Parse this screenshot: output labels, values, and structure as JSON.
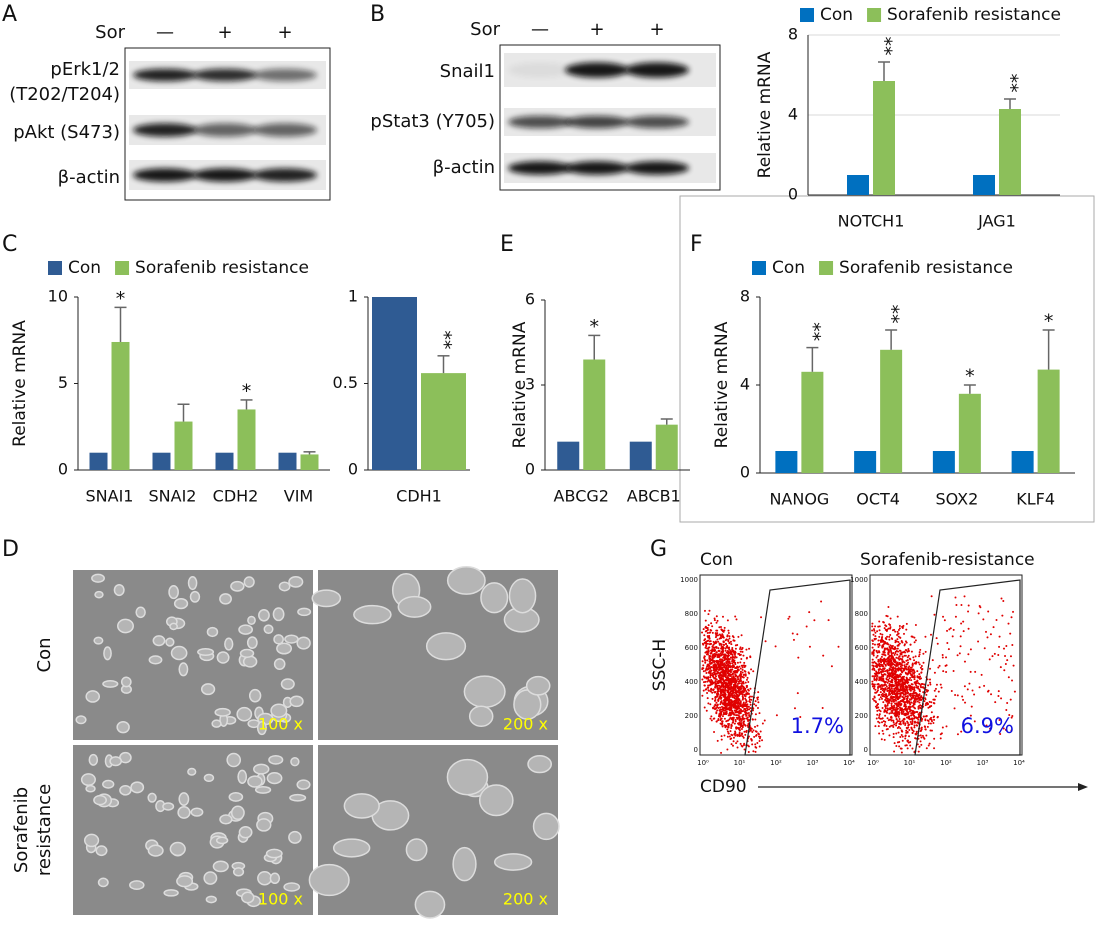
{
  "panels": [
    "A",
    "B",
    "C",
    "D",
    "E",
    "F",
    "G"
  ],
  "blot_a": {
    "treatment": "Sor",
    "lanes": [
      "—",
      "+",
      "+"
    ],
    "rows": [
      "pErk1/2",
      "(T202/T204)",
      "pAkt (S473)",
      "β-actin"
    ]
  },
  "blot_b": {
    "treatment": "Sor",
    "lanes": [
      "—",
      "+",
      "+"
    ],
    "rows": [
      "Snail1",
      "pStat3 (Y705)",
      "β-actin"
    ]
  },
  "micrographs": {
    "rows": [
      "Con",
      "Sorafenib",
      "resistance"
    ],
    "magnifications": [
      "100 x",
      "200 x",
      "100 x",
      "200 x"
    ]
  },
  "flow": {
    "groups": [
      "Con",
      "Sorafenib-resistance"
    ],
    "percentages": [
      "1.7%",
      "6.9%"
    ],
    "ylabel": "SSC-H",
    "xlabel": "CD90",
    "yticks": [
      1000,
      800,
      600,
      400,
      200,
      0
    ],
    "xticks": [
      "10⁰",
      "10¹",
      "10²",
      "10³",
      "10⁴"
    ]
  },
  "chart_data": [
    {
      "type": "bar",
      "ylabel": "Relative mRNA",
      "categories": [
        "NOTCH1",
        "JAG1"
      ],
      "grid": true,
      "series": [
        {
          "name": "Con",
          "color": "#0070c0",
          "values": [
            1,
            1
          ]
        },
        {
          "name": "Sorafenib resistance",
          "color": "#8cbf5a",
          "values": [
            5.7,
            4.3
          ],
          "errors": [
            0.95,
            0.5
          ],
          "annotations": [
            "**",
            "**"
          ]
        }
      ],
      "ylim": [
        0,
        8
      ],
      "yticks": [
        0,
        4,
        8
      ]
    },
    {
      "type": "bar",
      "ylabel": "Relative mRNA",
      "categories": [
        "SNAI1",
        "SNAI2",
        "CDH2",
        "VIM"
      ],
      "grid": false,
      "series": [
        {
          "name": "Con",
          "color": "#2f5b93",
          "values": [
            1,
            1,
            1,
            1
          ]
        },
        {
          "name": "Sorafenib resistance",
          "color": "#8cbf5a",
          "values": [
            7.4,
            2.8,
            3.5,
            0.9
          ],
          "errors": [
            2.0,
            1.0,
            0.55,
            0.15
          ],
          "annotations": [
            "*",
            null,
            "*",
            null
          ]
        }
      ],
      "ylim": [
        0,
        10
      ],
      "yticks": [
        0,
        5,
        10
      ]
    },
    {
      "type": "bar",
      "categories": [
        "CDH1"
      ],
      "grid": false,
      "series": [
        {
          "color": "#2f5b93",
          "values": [
            1
          ]
        },
        {
          "color": "#8cbf5a",
          "values": [
            0.56
          ],
          "errors": [
            0.1
          ],
          "annotations": [
            "**"
          ]
        }
      ],
      "ylim": [
        0,
        1
      ],
      "yticks": [
        0,
        0.5,
        1
      ]
    },
    {
      "type": "bar",
      "ylabel": "Relative mRNA",
      "categories": [
        "ABCG2",
        "ABCB1"
      ],
      "grid": false,
      "series": [
        {
          "color": "#2f5b93",
          "values": [
            1,
            1
          ]
        },
        {
          "color": "#8cbf5a",
          "values": [
            3.9,
            1.6
          ],
          "errors": [
            0.85,
            0.2
          ],
          "annotations": [
            "*",
            null
          ]
        }
      ],
      "ylim": [
        0,
        6
      ],
      "yticks": [
        0,
        3,
        6
      ]
    },
    {
      "type": "bar",
      "ylabel": "Relative mRNA",
      "categories": [
        "NANOG",
        "OCT4",
        "SOX2",
        "KLF4"
      ],
      "grid": false,
      "series": [
        {
          "name": "Con",
          "color": "#0070c0",
          "values": [
            1,
            1,
            1,
            1
          ]
        },
        {
          "name": "Sorafenib resistance",
          "color": "#8cbf5a",
          "values": [
            4.6,
            5.6,
            3.6,
            4.7
          ],
          "errors": [
            1.1,
            0.9,
            0.4,
            1.8
          ],
          "annotations": [
            "**",
            "**",
            "*",
            "*"
          ]
        }
      ],
      "ylim": [
        0,
        8
      ],
      "yticks": [
        0,
        4,
        8
      ]
    }
  ]
}
